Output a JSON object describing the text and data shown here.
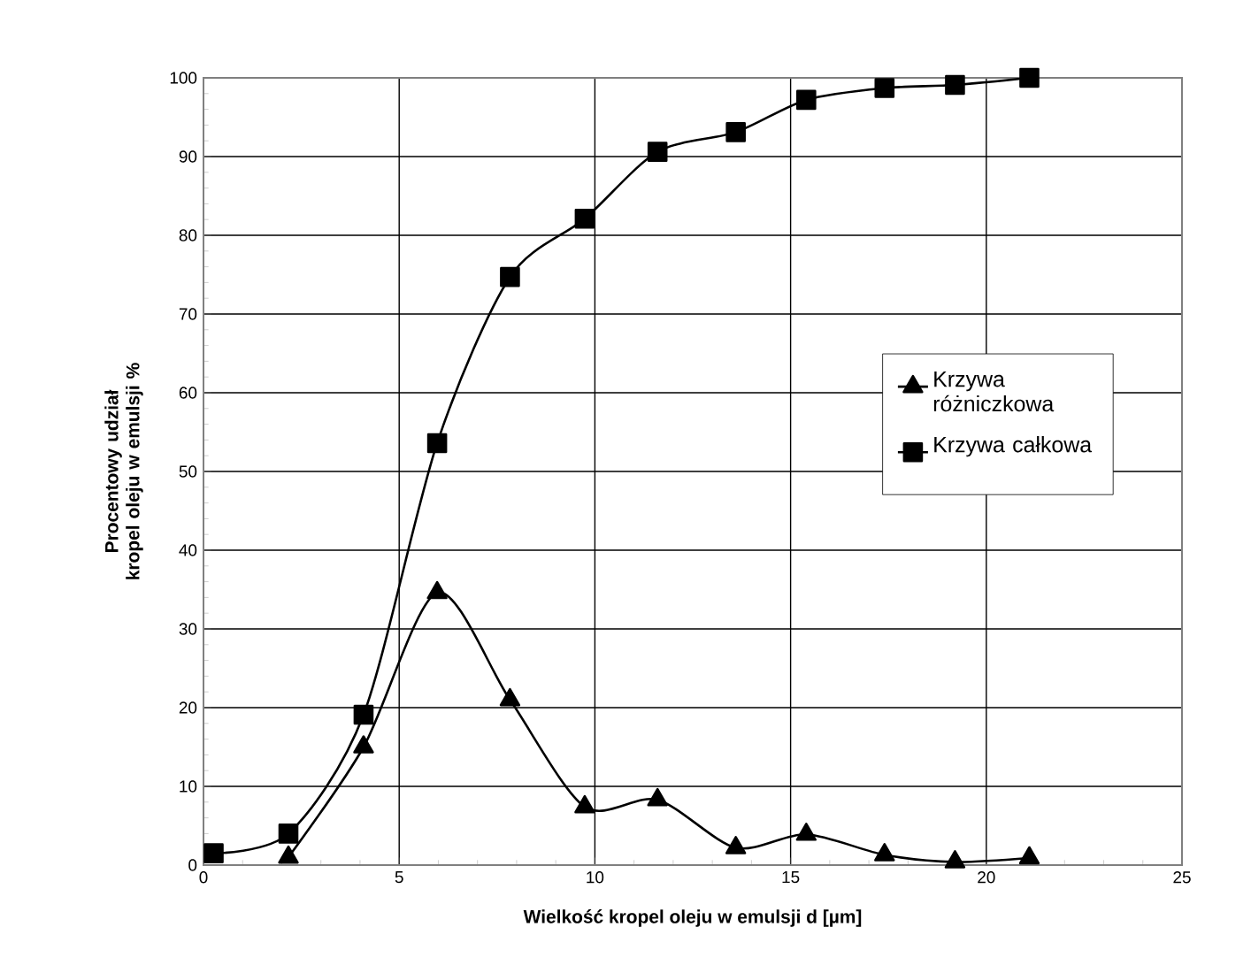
{
  "chart_data": {
    "type": "line",
    "xlabel": "Wielkość kropel oleju w emulsji d [µm]",
    "ylabel": "Procentowy udział kropel oleju w emulsji %",
    "x": [
      0.26,
      2.17,
      4.09,
      5.97,
      7.83,
      9.74,
      11.6,
      13.6,
      15.4,
      17.4,
      19.2,
      21.1
    ],
    "series": [
      {
        "name": "Krzywa różniczkowa",
        "color": "#000000",
        "marker": "triangle",
        "values": [
          null,
          1,
          15,
          34.6,
          21,
          7.4,
          8.3,
          2.2,
          3.9,
          1.3,
          0.4,
          0.9
        ]
      },
      {
        "name": "Krzywa całkowa",
        "color": "#000000",
        "marker": "square",
        "values": [
          1.5,
          4,
          19.1,
          53.6,
          74.7,
          82.1,
          90.6,
          93.1,
          97.2,
          98.7,
          99.1,
          100
        ]
      }
    ],
    "xlim": [
      0,
      25
    ],
    "ylim": [
      0,
      100
    ],
    "xticks": [
      0,
      5,
      10,
      15,
      20,
      25
    ],
    "yticks": [
      0,
      10,
      20,
      30,
      40,
      50,
      60,
      70,
      80,
      90,
      100
    ],
    "grid": true,
    "legend": "right",
    "line_style": "solid"
  }
}
